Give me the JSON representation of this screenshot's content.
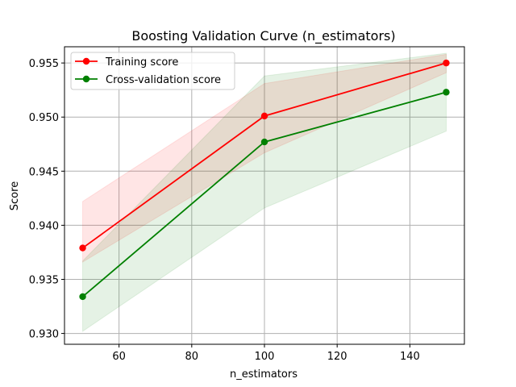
{
  "chart_data": {
    "type": "line",
    "title": "Boosting Validation Curve (n_estimators)",
    "xlabel": "n_estimators",
    "ylabel": "Score",
    "xlim": [
      45,
      155
    ],
    "ylim": [
      0.929,
      0.9565
    ],
    "xticks": [
      60,
      80,
      100,
      120,
      140
    ],
    "yticks": [
      0.93,
      0.935,
      0.94,
      0.945,
      0.95,
      0.955
    ],
    "xtick_labels": [
      "60",
      "80",
      "100",
      "120",
      "140"
    ],
    "ytick_labels": [
      "0.930",
      "0.935",
      "0.940",
      "0.945",
      "0.950",
      "0.955"
    ],
    "grid": true,
    "legend_position": "top-left",
    "x": [
      50,
      100,
      150
    ],
    "series": [
      {
        "name": "Training score",
        "color": "#ff0000",
        "values": [
          0.9379,
          0.9501,
          0.955
        ],
        "band_lower": [
          0.9366,
          0.9467,
          0.9541
        ],
        "band_upper": [
          0.9422,
          0.9531,
          0.9558
        ]
      },
      {
        "name": "Cross-validation score",
        "color": "#008000",
        "values": [
          0.9334,
          0.9477,
          0.9523
        ],
        "band_lower": [
          0.9302,
          0.9416,
          0.9487
        ],
        "band_upper": [
          0.9367,
          0.9538,
          0.9559
        ]
      }
    ]
  }
}
